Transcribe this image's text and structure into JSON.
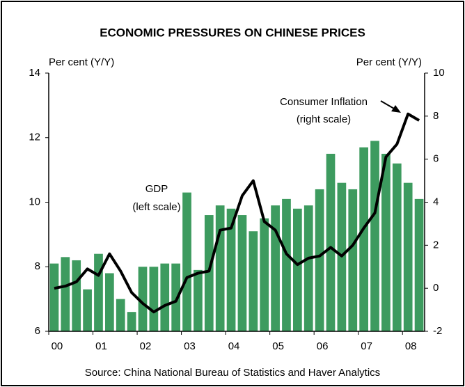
{
  "chart_data": {
    "type": "bar",
    "title": "ECONOMIC PRESSURES ON CHINESE PRICES",
    "y_label": "Per cent (Y/Y)",
    "y2_label": "Per cent (Y/Y)",
    "source": "Source: China National Bureau of Statistics and Haver Analytics",
    "categories": [
      "00",
      null,
      null,
      null,
      "01",
      null,
      null,
      null,
      "02",
      null,
      null,
      null,
      "03",
      null,
      null,
      null,
      "04",
      null,
      null,
      null,
      "05",
      null,
      null,
      null,
      "06",
      null,
      null,
      null,
      "07",
      null,
      null,
      null,
      "08",
      null
    ],
    "series": [
      {
        "name": "GDP",
        "type": "bar",
        "axis": "y",
        "color": "#3d9b5f",
        "values": [
          8.1,
          8.3,
          8.2,
          7.3,
          8.4,
          7.8,
          7.0,
          6.6,
          8.0,
          8.0,
          8.1,
          8.1,
          10.3,
          7.9,
          9.6,
          9.9,
          9.8,
          9.6,
          9.1,
          9.5,
          9.9,
          10.1,
          9.8,
          9.9,
          10.4,
          11.5,
          10.6,
          10.4,
          11.7,
          11.9,
          11.5,
          11.2,
          10.6,
          10.1
        ]
      },
      {
        "name": "Consumer Inflation",
        "type": "line",
        "axis": "y2",
        "color": "#000000",
        "values": [
          0.0,
          0.1,
          0.3,
          0.9,
          0.6,
          1.6,
          0.8,
          -0.2,
          -0.7,
          -1.1,
          -0.8,
          -0.6,
          0.5,
          0.7,
          0.8,
          2.7,
          2.8,
          4.3,
          5.0,
          3.1,
          2.7,
          1.6,
          1.1,
          1.4,
          1.5,
          1.9,
          1.5,
          2.0,
          2.8,
          3.5,
          6.1,
          6.7,
          8.1,
          7.8
        ]
      }
    ],
    "annotations": [
      [
        "GDP",
        "(left scale)"
      ],
      [
        "Consumer Inflation",
        "(right scale)"
      ]
    ],
    "ylim": [
      6,
      14
    ],
    "yticks": [
      6,
      8,
      10,
      12,
      14
    ],
    "y2lim": [
      -2,
      10
    ],
    "y2ticks": [
      -2,
      0,
      2,
      4,
      6,
      8,
      10
    ]
  }
}
